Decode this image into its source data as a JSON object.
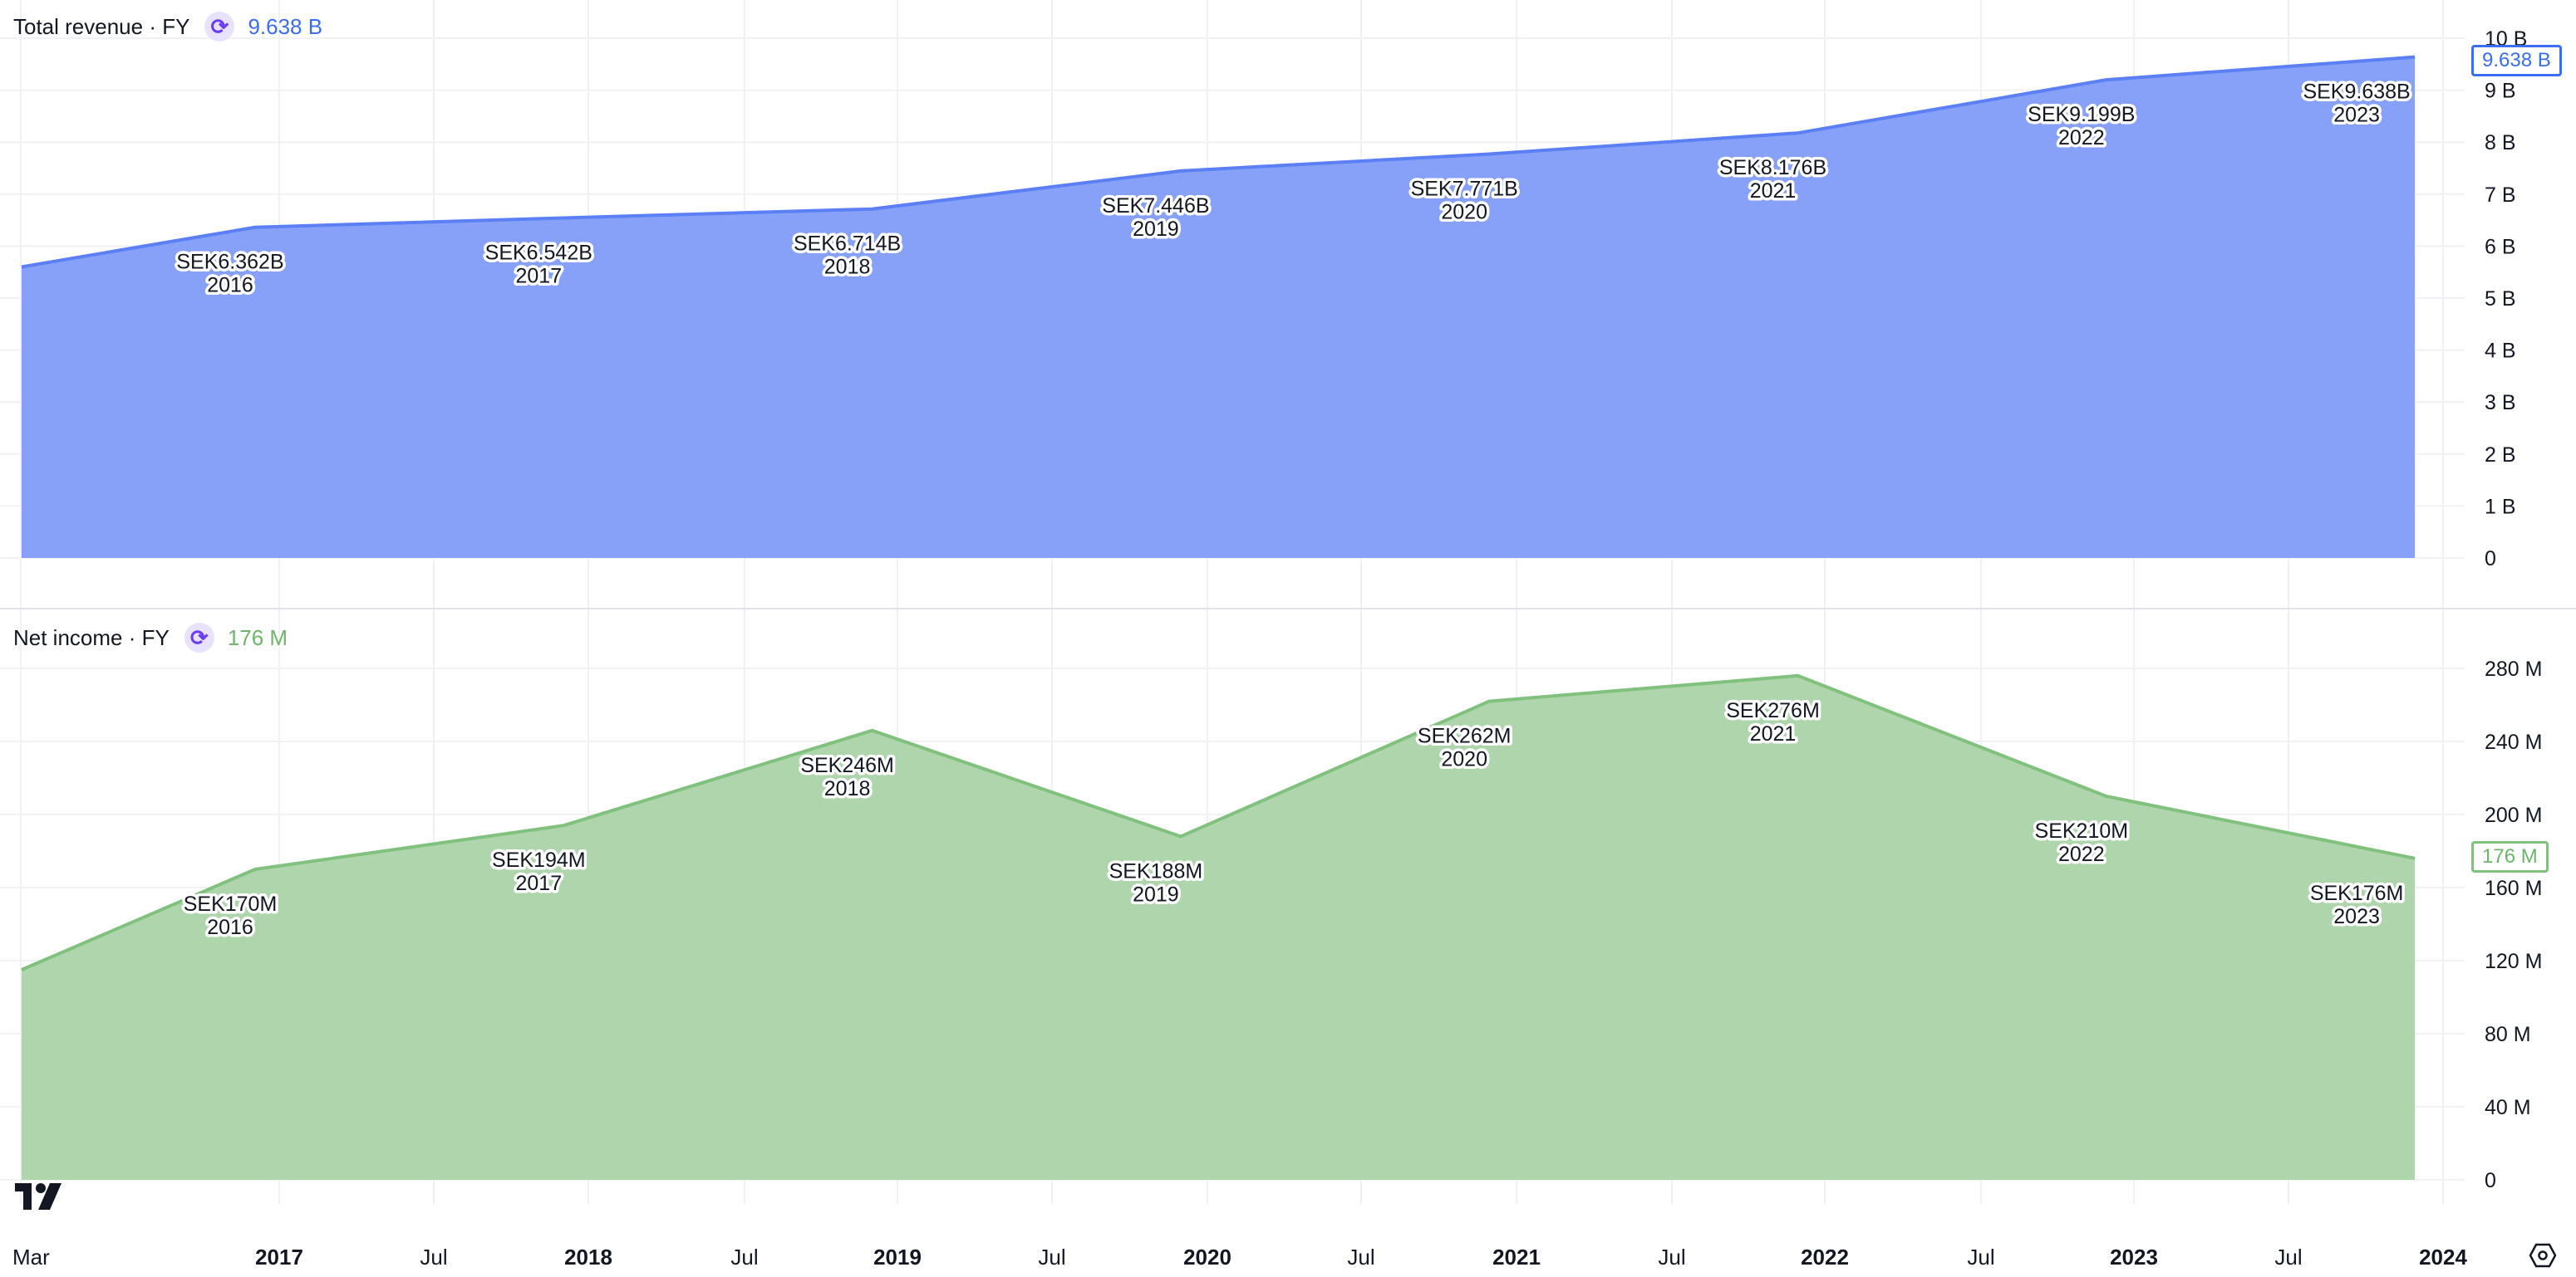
{
  "panes": [
    {
      "title": "Total revenue · FY",
      "last_value": "9.638 B",
      "badge": "9.638 B",
      "color": "#5b7ff5",
      "fill": "#86a1f7"
    },
    {
      "title": "Net income · FY",
      "last_value": "176 M",
      "badge": "176 M",
      "color": "#80c17e",
      "fill": "#afd5ad"
    }
  ],
  "chart_data": [
    {
      "type": "area",
      "title": "Total revenue · FY",
      "unit": "B SEK",
      "ylim": [
        0,
        10
      ],
      "yticks": [
        "0",
        "1 B",
        "2 B",
        "3 B",
        "4 B",
        "5 B",
        "6 B",
        "7 B",
        "8 B",
        "9 B",
        "10 B"
      ],
      "start_value": 5.6,
      "points": [
        {
          "year": "2016",
          "value": 6.362,
          "label": "SEK6.362B"
        },
        {
          "year": "2017",
          "value": 6.542,
          "label": "SEK6.542B"
        },
        {
          "year": "2018",
          "value": 6.714,
          "label": "SEK6.714B"
        },
        {
          "year": "2019",
          "value": 7.446,
          "label": "SEK7.446B"
        },
        {
          "year": "2020",
          "value": 7.771,
          "label": "SEK7.771B"
        },
        {
          "year": "2021",
          "value": 8.176,
          "label": "SEK8.176B"
        },
        {
          "year": "2022",
          "value": 9.199,
          "label": "SEK9.199B"
        },
        {
          "year": "2023",
          "value": 9.638,
          "label": "SEK9.638B"
        }
      ]
    },
    {
      "type": "area",
      "title": "Net income · FY",
      "unit": "M SEK",
      "ylim": [
        0,
        280
      ],
      "yticks": [
        "0",
        "40 M",
        "80 M",
        "120 M",
        "160 M",
        "200 M",
        "240 M",
        "280 M"
      ],
      "start_value": 115,
      "points": [
        {
          "year": "2016",
          "value": 170,
          "label": "SEK170M"
        },
        {
          "year": "2017",
          "value": 194,
          "label": "SEK194M"
        },
        {
          "year": "2018",
          "value": 246,
          "label": "SEK246M"
        },
        {
          "year": "2019",
          "value": 188,
          "label": "SEK188M"
        },
        {
          "year": "2020",
          "value": 262,
          "label": "SEK262M"
        },
        {
          "year": "2021",
          "value": 276,
          "label": "SEK276M"
        },
        {
          "year": "2022",
          "value": 210,
          "label": "SEK210M"
        },
        {
          "year": "2023",
          "value": 176,
          "label": "SEK176M"
        }
      ]
    }
  ],
  "xaxis": {
    "ticks": [
      {
        "label": "Mar",
        "bold": false
      },
      {
        "label": "2017",
        "bold": true
      },
      {
        "label": "Jul",
        "bold": false
      },
      {
        "label": "2018",
        "bold": true
      },
      {
        "label": "Jul",
        "bold": false
      },
      {
        "label": "2019",
        "bold": true
      },
      {
        "label": "Jul",
        "bold": false
      },
      {
        "label": "2020",
        "bold": true
      },
      {
        "label": "Jul",
        "bold": false
      },
      {
        "label": "2021",
        "bold": true
      },
      {
        "label": "Jul",
        "bold": false
      },
      {
        "label": "2022",
        "bold": true
      },
      {
        "label": "Jul",
        "bold": false
      },
      {
        "label": "2023",
        "bold": true
      },
      {
        "label": "Jul",
        "bold": false
      },
      {
        "label": "2024",
        "bold": true
      }
    ]
  }
}
